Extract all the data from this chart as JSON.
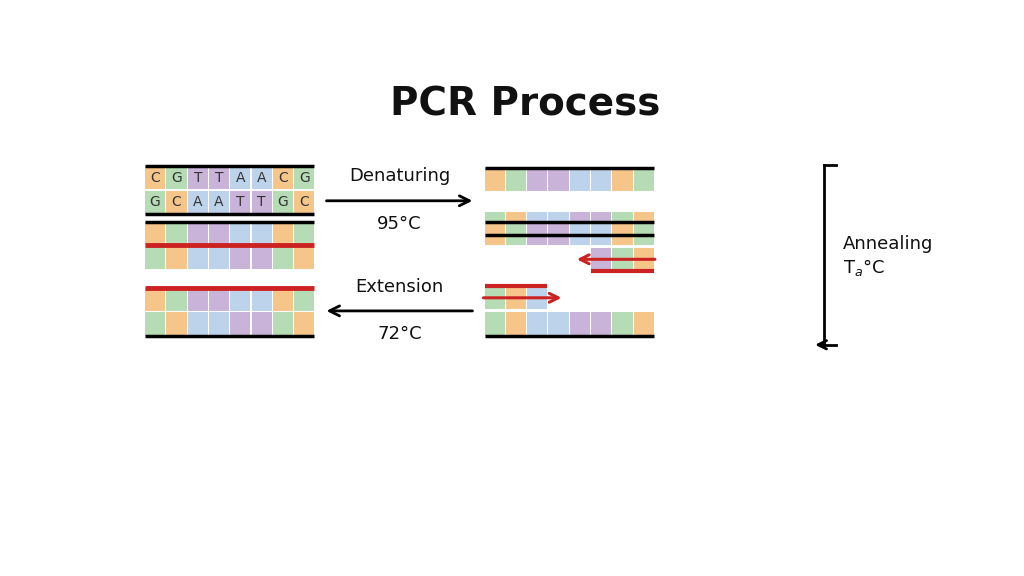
{
  "title": "PCR Process",
  "bg": "#ffffff",
  "o": "#F5C58A",
  "g": "#B5DCB5",
  "p": "#C9B3D9",
  "b": "#BDD3EC",
  "red": "#CC2222",
  "s1": [
    "C",
    "G",
    "T",
    "T",
    "A",
    "A",
    "C",
    "G"
  ],
  "s1c": [
    "#F5C58A",
    "#B5DCB5",
    "#C9B3D9",
    "#C9B3D9",
    "#BDD3EC",
    "#BDD3EC",
    "#F5C58A",
    "#B5DCB5"
  ],
  "s2": [
    "G",
    "C",
    "A",
    "A",
    "T",
    "T",
    "G",
    "C"
  ],
  "s2c": [
    "#B5DCB5",
    "#F5C58A",
    "#BDD3EC",
    "#BDD3EC",
    "#C9B3D9",
    "#C9B3D9",
    "#B5DCB5",
    "#F5C58A"
  ],
  "top_strand": [
    "#F5C58A",
    "#B5DCB5",
    "#C9B3D9",
    "#C9B3D9",
    "#BDD3EC",
    "#BDD3EC",
    "#F5C58A",
    "#B5DCB5"
  ],
  "bot_strand": [
    "#B5DCB5",
    "#F5C58A",
    "#BDD3EC",
    "#BDD3EC",
    "#C9B3D9",
    "#C9B3D9",
    "#B5DCB5",
    "#F5C58A"
  ],
  "ann_top": [
    "#F5C58A",
    "#B5DCB5",
    "#C9B3D9",
    "#C9B3D9",
    "#BDD3EC",
    "#BDD3EC",
    "#F5C58A",
    "#B5DCB5"
  ],
  "ann_top_primer": [
    "#C9B3D9",
    "#B5DCB5",
    "#F5C58A"
  ],
  "ann_bot": [
    "#B5DCB5",
    "#F5C58A",
    "#BDD3EC",
    "#BDD3EC",
    "#C9B3D9",
    "#C9B3D9",
    "#B5DCB5",
    "#F5C58A"
  ],
  "ann_bot_primer": [
    "#B5DCB5",
    "#F5C58A",
    "#BDD3EC"
  ]
}
